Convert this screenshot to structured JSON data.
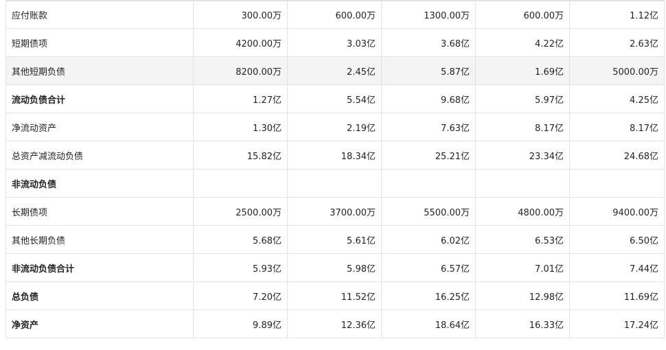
{
  "rows": [
    {
      "label": "应付账款",
      "values": [
        "300.00万",
        "600.00万",
        "1300.00万",
        "600.00万",
        "1.12亿"
      ],
      "bold": false,
      "highlight": false
    },
    {
      "label": "短期债项",
      "values": [
        "4200.00万",
        "3.03亿",
        "3.68亿",
        "4.22亿",
        "2.63亿"
      ],
      "bold": false,
      "highlight": false
    },
    {
      "label": "其他短期负债",
      "values": [
        "8200.00万",
        "2.45亿",
        "5.87亿",
        "1.69亿",
        "5000.00万"
      ],
      "bold": false,
      "highlight": true
    },
    {
      "label": "流动负债合计",
      "values": [
        "1.27亿",
        "5.54亿",
        "9.68亿",
        "5.97亿",
        "4.25亿"
      ],
      "bold": true,
      "highlight": false
    },
    {
      "label": "净流动资产",
      "values": [
        "1.30亿",
        "2.19亿",
        "7.63亿",
        "8.17亿",
        "8.17亿"
      ],
      "bold": false,
      "highlight": false
    },
    {
      "label": "总资产减流动负债",
      "values": [
        "15.82亿",
        "18.34亿",
        "25.21亿",
        "23.34亿",
        "24.68亿"
      ],
      "bold": false,
      "highlight": false
    },
    {
      "label": "非流动负债",
      "values": [
        "",
        "",
        "",
        "",
        ""
      ],
      "bold": true,
      "highlight": false
    },
    {
      "label": "长期债项",
      "values": [
        "2500.00万",
        "3700.00万",
        "5500.00万",
        "4800.00万",
        "9400.00万"
      ],
      "bold": false,
      "highlight": false
    },
    {
      "label": "其他长期负债",
      "values": [
        "5.68亿",
        "5.61亿",
        "6.02亿",
        "6.53亿",
        "6.50亿"
      ],
      "bold": false,
      "highlight": false
    },
    {
      "label": "非流动负债合计",
      "values": [
        "5.93亿",
        "5.98亿",
        "6.57亿",
        "7.01亿",
        "7.44亿"
      ],
      "bold": true,
      "highlight": false
    },
    {
      "label": "总负债",
      "values": [
        "7.20亿",
        "11.52亿",
        "16.25亿",
        "12.98亿",
        "11.69亿"
      ],
      "bold": true,
      "highlight": false
    },
    {
      "label": "净资产",
      "values": [
        "9.89亿",
        "12.36亿",
        "18.64亿",
        "16.33亿",
        "17.24亿"
      ],
      "bold": true,
      "highlight": false
    }
  ]
}
